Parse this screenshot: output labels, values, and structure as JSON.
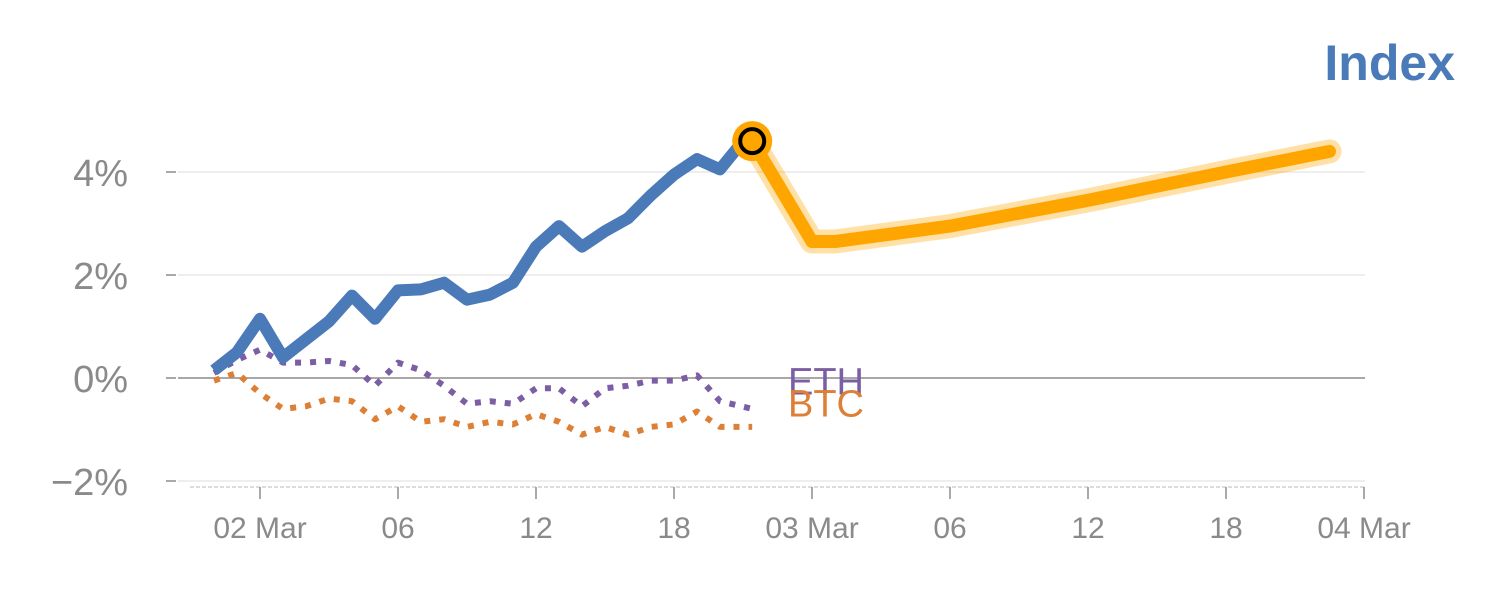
{
  "chart_data": {
    "type": "line",
    "title": "Index",
    "xlabel": "",
    "ylabel": "",
    "y_unit": "%",
    "ylim": [
      -2.1,
      4.6
    ],
    "grid": true,
    "legend": "inline-labels",
    "x_ticks": [
      "02 Mar",
      "06",
      "12",
      "18",
      "03 Mar",
      "06",
      "12",
      "18",
      "04 Mar"
    ],
    "x_tick_hours": [
      0,
      6,
      12,
      18,
      24,
      30,
      36,
      42,
      48
    ],
    "y_ticks": [
      -2,
      0,
      2,
      4
    ],
    "y_tick_labels": [
      "−2%",
      "0%",
      "2%",
      "4%"
    ],
    "colors": {
      "index": "#4a7ab8",
      "forecast": "#ffa500",
      "eth": "#7b5ea3",
      "btc": "#dd7f35",
      "zero_line": "#8c8c8c",
      "grid": "#e8e8e8",
      "title": "#4a7ab8"
    },
    "series": [
      {
        "key": "index",
        "style": "solid",
        "x": [
          -2,
          -1,
          0,
          1,
          2,
          3,
          4,
          5,
          6,
          7,
          8,
          9,
          10,
          11,
          12,
          13,
          14,
          15,
          16,
          17,
          18,
          19,
          20,
          21
        ],
        "y": [
          0.15,
          0.5,
          1.15,
          0.4,
          0.75,
          1.1,
          1.6,
          1.15,
          1.7,
          1.72,
          1.85,
          1.52,
          1.62,
          1.85,
          2.55,
          2.95,
          2.55,
          2.85,
          3.1,
          3.55,
          3.95,
          4.25,
          4.05,
          4.6
        ]
      },
      {
        "key": "forecast",
        "style": "solid-glow",
        "x": [
          21.4,
          24,
          25,
          30,
          36,
          42,
          46.5
        ],
        "y": [
          4.6,
          2.65,
          2.65,
          2.95,
          3.45,
          4.0,
          4.4
        ]
      },
      {
        "key": "eth",
        "name": "ETH",
        "style": "dotted",
        "x": [
          -2,
          -1,
          0,
          1,
          2,
          3,
          4,
          5,
          6,
          7,
          8,
          9,
          10,
          11,
          12,
          13,
          14,
          15,
          16,
          17,
          18,
          19,
          20,
          21.4
        ],
        "y": [
          0.1,
          0.35,
          0.55,
          0.3,
          0.3,
          0.33,
          0.25,
          -0.15,
          0.3,
          0.15,
          -0.15,
          -0.5,
          -0.45,
          -0.5,
          -0.2,
          -0.2,
          -0.55,
          -0.2,
          -0.15,
          -0.05,
          -0.05,
          0.05,
          -0.45,
          -0.6
        ]
      },
      {
        "key": "btc",
        "name": "BTC",
        "style": "dotted",
        "x": [
          -2,
          -1,
          0,
          1,
          2,
          3,
          4,
          5,
          6,
          7,
          8,
          9,
          10,
          11,
          12,
          13,
          14,
          15,
          16,
          17,
          18,
          19,
          20,
          21.4
        ],
        "y": [
          -0.05,
          0.1,
          -0.3,
          -0.6,
          -0.55,
          -0.4,
          -0.45,
          -0.8,
          -0.55,
          -0.85,
          -0.8,
          -0.95,
          -0.85,
          -0.9,
          -0.7,
          -0.85,
          -1.1,
          -0.95,
          -1.1,
          -0.95,
          -0.9,
          -0.65,
          -0.95,
          -0.95
        ]
      }
    ],
    "marker": {
      "x": 21.4,
      "y": 4.6
    },
    "inline_labels": [
      {
        "series": "eth",
        "text": "ETH",
        "y": -0.05
      },
      {
        "series": "btc",
        "text": "BTC",
        "y": -0.48
      }
    ]
  }
}
